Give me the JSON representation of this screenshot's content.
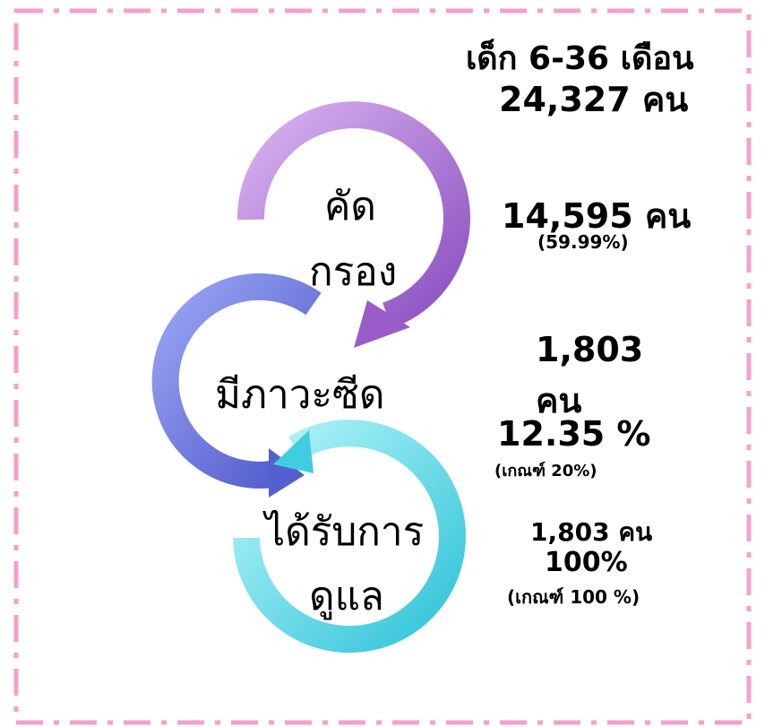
{
  "header": {
    "line1": "เด็ก 6-36 เดือน",
    "line2": "24,327 คน"
  },
  "stages": [
    {
      "label": [
        "คัด",
        "กรอง"
      ],
      "stats": [
        "14,595 คน",
        "(59.99%)"
      ]
    },
    {
      "label": [
        "มีภาวะซีด"
      ],
      "stats": [
        "1,803",
        "คน",
        "12.35 %",
        "(เกณฑ์ 20%)"
      ]
    },
    {
      "label": [
        "ได้รับการ",
        "ดูแล"
      ],
      "stats": [
        "1,803 คน",
        "100%",
        "(เกณฑ์ 100 %)"
      ]
    }
  ]
}
